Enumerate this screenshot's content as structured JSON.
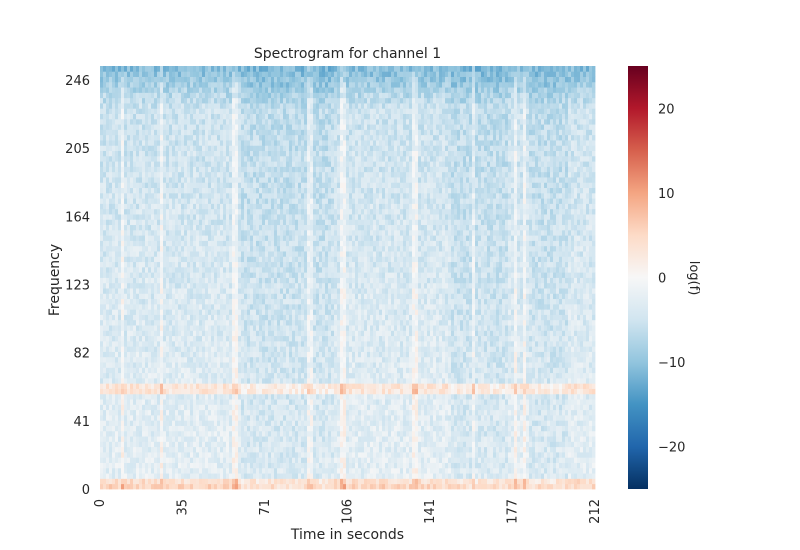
{
  "chart_data": {
    "type": "heatmap",
    "title": "Spectrogram for channel 1",
    "xlabel": "Time in seconds",
    "ylabel": "Frequency",
    "x_ticks": [
      "0",
      "35",
      "71",
      "106",
      "141",
      "177",
      "212"
    ],
    "y_ticks": [
      "0",
      "41",
      "82",
      "123",
      "164",
      "205",
      "246"
    ],
    "xlim": [
      0,
      212
    ],
    "ylim": [
      0,
      250
    ],
    "colorbar": {
      "label": "log(f)",
      "ticks": [
        "−20",
        "−10",
        "0",
        "10",
        "20"
      ],
      "range": [
        -25,
        25
      ],
      "colormap": "RdBu_r",
      "colors": [
        "#053061",
        "#2166ac",
        "#4393c3",
        "#92c5de",
        "#d1e5f0",
        "#f7f7f7",
        "#fddbc7",
        "#f4a582",
        "#d6604d",
        "#b2182b",
        "#67001f"
      ]
    },
    "features": {
      "line_noise_band_hz": 60,
      "low_frequency_band_hz": [
        0,
        4
      ],
      "high_frequency_band_hz": [
        230,
        250
      ],
      "vertical_artifact_times_s": [
        10,
        26,
        58,
        90,
        104,
        135,
        160,
        178,
        182
      ]
    },
    "grid": false
  }
}
